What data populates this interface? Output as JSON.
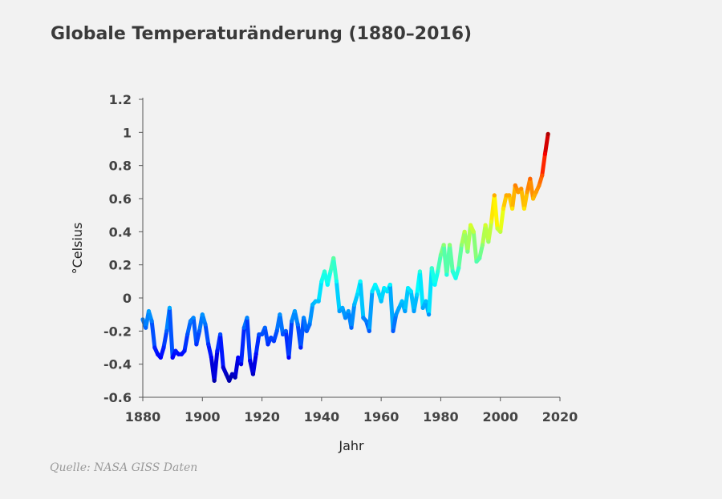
{
  "title": "Globale Temperaturänderung (1880–2016)",
  "source": "Quelle: NASA GISS Daten",
  "chart_data": {
    "type": "line",
    "title": "Globale Temperaturänderung (1880–2016)",
    "xlabel": "Jahr",
    "ylabel": "°Celsius",
    "xlim": [
      1880,
      2017
    ],
    "ylim": [
      -0.6,
      1.2
    ],
    "x_ticks": [
      "1880",
      "1900",
      "1920",
      "1940",
      "1960",
      "1980",
      "2000",
      "2020"
    ],
    "y_ticks": [
      "1.2",
      "1",
      "0.8",
      "0.6",
      "0.4",
      "0.2",
      "0",
      "-0.2",
      "-0.4",
      "-0.6"
    ],
    "grid": false,
    "legend": "none",
    "colormap": [
      "#00008b",
      "#0000ff",
      "#00ffff",
      "#ffff00",
      "#ff0000",
      "#8b0000"
    ],
    "series": [
      {
        "x": [
          1880,
          1881,
          1882,
          1883,
          1884,
          1885,
          1886,
          1887,
          1888,
          1889,
          1890,
          1891,
          1892,
          1893,
          1894,
          1895,
          1896,
          1897,
          1898,
          1899,
          1900,
          1901,
          1902,
          1903,
          1904,
          1905,
          1906,
          1907,
          1908,
          1909,
          1910,
          1911,
          1912,
          1913,
          1914,
          1915,
          1916,
          1917,
          1918,
          1919,
          1920,
          1921,
          1922,
          1923,
          1924,
          1925,
          1926,
          1927,
          1928,
          1929,
          1930,
          1931,
          1932,
          1933,
          1934,
          1935,
          1936,
          1937,
          1938,
          1939,
          1940,
          1941,
          1942,
          1943,
          1944,
          1945,
          1946,
          1947,
          1948,
          1949,
          1950,
          1951,
          1952,
          1953,
          1954,
          1955,
          1956,
          1957,
          1958,
          1959,
          1960,
          1961,
          1962,
          1963,
          1964,
          1965,
          1966,
          1967,
          1968,
          1969,
          1970,
          1971,
          1972,
          1973,
          1974,
          1975,
          1976,
          1977,
          1978,
          1979,
          1980,
          1981,
          1982,
          1983,
          1984,
          1985,
          1986,
          1987,
          1988,
          1989,
          1990,
          1991,
          1992,
          1993,
          1994,
          1995,
          1996,
          1997,
          1998,
          1999,
          2000,
          2001,
          2002,
          2003,
          2004,
          2005,
          2006,
          2007,
          2008,
          2009,
          2010,
          2011,
          2012,
          2013,
          2014,
          2015,
          2016
        ],
        "values": [
          -0.13,
          -0.18,
          -0.08,
          -0.14,
          -0.3,
          -0.34,
          -0.36,
          -0.3,
          -0.2,
          -0.06,
          -0.36,
          -0.32,
          -0.34,
          -0.34,
          -0.32,
          -0.22,
          -0.14,
          -0.12,
          -0.28,
          -0.2,
          -0.1,
          -0.16,
          -0.28,
          -0.36,
          -0.5,
          -0.32,
          -0.22,
          -0.42,
          -0.46,
          -0.5,
          -0.46,
          -0.48,
          -0.36,
          -0.4,
          -0.18,
          -0.12,
          -0.38,
          -0.46,
          -0.34,
          -0.22,
          -0.22,
          -0.18,
          -0.28,
          -0.24,
          -0.26,
          -0.2,
          -0.1,
          -0.22,
          -0.2,
          -0.36,
          -0.14,
          -0.08,
          -0.16,
          -0.3,
          -0.12,
          -0.2,
          -0.16,
          -0.04,
          -0.02,
          -0.02,
          0.1,
          0.16,
          0.08,
          0.16,
          0.24,
          0.1,
          -0.08,
          -0.06,
          -0.12,
          -0.08,
          -0.18,
          -0.04,
          0.02,
          0.1,
          -0.12,
          -0.14,
          -0.2,
          0.04,
          0.08,
          0.04,
          -0.02,
          0.06,
          0.04,
          0.08,
          -0.2,
          -0.1,
          -0.06,
          -0.02,
          -0.08,
          0.06,
          0.04,
          -0.08,
          0.02,
          0.16,
          -0.06,
          -0.02,
          -0.1,
          0.18,
          0.08,
          0.16,
          0.26,
          0.32,
          0.14,
          0.32,
          0.16,
          0.12,
          0.18,
          0.32,
          0.4,
          0.28,
          0.44,
          0.4,
          0.22,
          0.24,
          0.32,
          0.44,
          0.34,
          0.46,
          0.62,
          0.42,
          0.4,
          0.54,
          0.62,
          0.62,
          0.54,
          0.68,
          0.64,
          0.66,
          0.54,
          0.64,
          0.72,
          0.6,
          0.64,
          0.68,
          0.74,
          0.87,
          0.99
        ]
      }
    ]
  }
}
